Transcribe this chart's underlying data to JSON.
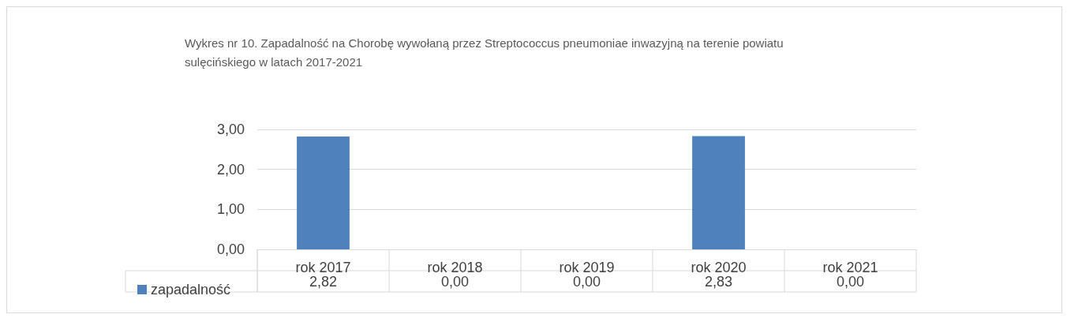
{
  "chart_data": {
    "type": "bar",
    "title": "Wykres nr 10. Zapadalność na Chorobę wywołaną przez Streptococcus pneumoniae inwazyjną na terenie powiatu sulęcińskiego w latach 2017-2021",
    "categories": [
      "rok 2017",
      "rok 2018",
      "rok 2019",
      "rok 2020",
      "rok 2021"
    ],
    "series": [
      {
        "name": "zapadalność",
        "color": "#4f81bd",
        "values": [
          2.82,
          0,
          0,
          2.83,
          0
        ]
      }
    ],
    "value_labels": [
      "2,82",
      "0,00",
      "0,00",
      "2,83",
      "0,00"
    ],
    "ylim": [
      0,
      3
    ],
    "yticks": [
      {
        "value": 0,
        "label": "0,00"
      },
      {
        "value": 1,
        "label": "1,00"
      },
      {
        "value": 2,
        "label": "2,00"
      },
      {
        "value": 3,
        "label": "3,00"
      }
    ],
    "grid": "y",
    "legend": "bottom left"
  }
}
